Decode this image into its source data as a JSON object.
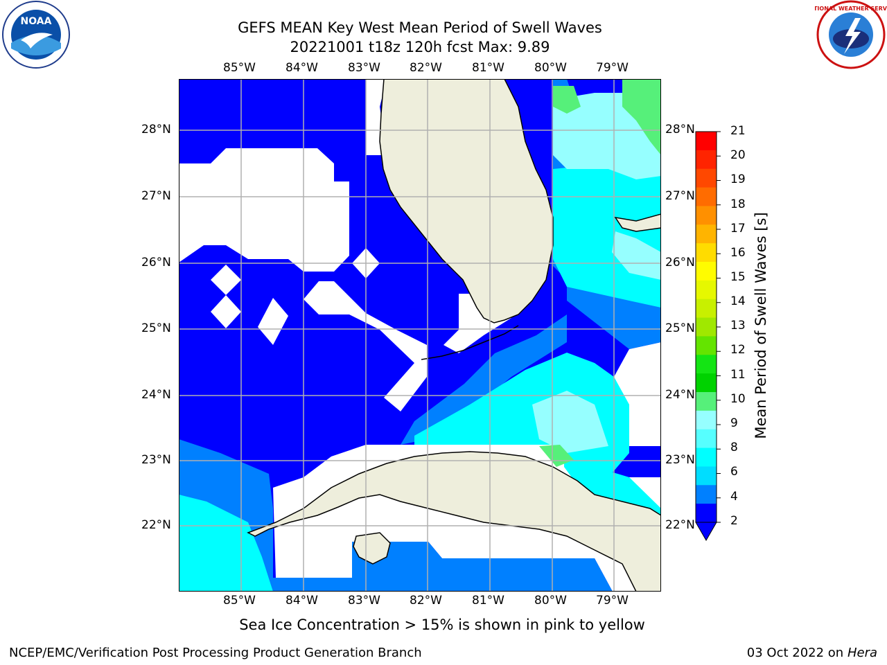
{
  "header": {
    "title_line1": "GEFS MEAN Key West Mean Period of Swell Waves",
    "title_line2": "20221001 t18z 120h fcst   Max: 9.89"
  },
  "logos": {
    "left": "NOAA",
    "right": "NATIONAL WEATHER SERVICE"
  },
  "map": {
    "lon_labels": [
      "85°W",
      "84°W",
      "83°W",
      "82°W",
      "81°W",
      "80°W",
      "79°W"
    ],
    "lat_labels": [
      "28°N",
      "27°N",
      "26°N",
      "25°N",
      "24°N",
      "23°N",
      "22°N"
    ]
  },
  "colorbar": {
    "label": "Mean Period of Swell Waves [s]",
    "ticks": [
      "21",
      "20",
      "19",
      "18",
      "17",
      "16",
      "15",
      "14",
      "13",
      "12",
      "11",
      "10",
      "9",
      "8",
      "6",
      "4",
      "2"
    ],
    "colors": [
      "#ff0000",
      "#ff2400",
      "#ff4800",
      "#ff6c00",
      "#ff9000",
      "#ffb400",
      "#ffdc00",
      "#fffc00",
      "#e6f800",
      "#c8f000",
      "#a0e800",
      "#64e400",
      "#14e414",
      "#00d200",
      "#56f07a",
      "#96ffff",
      "#56ffff",
      "#00ffff",
      "#00ddff",
      "#0080ff",
      "#0000ff"
    ]
  },
  "caption": "Sea Ice Concentration > 15% is shown in pink to yellow",
  "footer": {
    "left": "NCEP/EMC/Verification Post Processing Product Generation Branch",
    "date": "03 Oct 2022 on ",
    "machine": "Hera"
  },
  "colors": {
    "land": "#eeeedc",
    "no_data": "#ffffff",
    "p2": "#0000ff",
    "p4": "#0080ff",
    "p6": "#00ffff",
    "p8": "#96ffff",
    "p9": "#56f07a",
    "grid": "#b0b0b0"
  }
}
